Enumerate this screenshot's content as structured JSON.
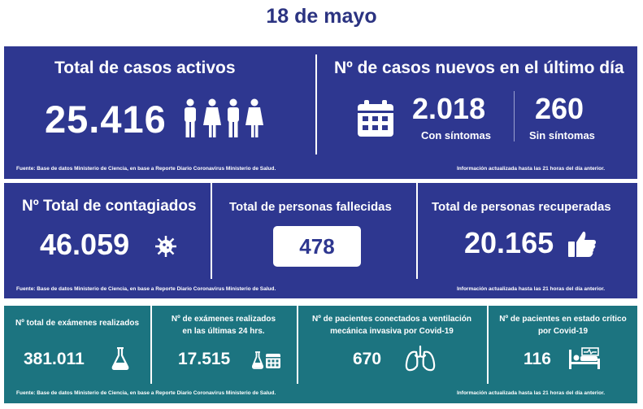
{
  "date": "18 de mayo",
  "top": {
    "activos": {
      "title": "Total de casos activos",
      "value": "25.416",
      "icon": "people-icon"
    },
    "nuevos": {
      "title": "Nº de casos nuevos en el último día",
      "icon": "calendar-icon",
      "con_value": "2.018",
      "con_label": "Con síntomas",
      "sin_value": "260",
      "sin_label": "Sin síntomas"
    },
    "footer_left": "Fuente: Base de datos Ministerio de Ciencia, en base a Reporte Diario Coronavirus Ministerio de Salud.",
    "footer_right": "Información actualizada hasta las 21 horas  del día anterior."
  },
  "middle": {
    "contagiados": {
      "title": "Nº Total de contagiados",
      "value": "46.059",
      "icon": "virus-icon"
    },
    "fallecidas": {
      "title": "Total de personas fallecidas",
      "value": "478"
    },
    "recuperadas": {
      "title": "Total de personas recuperadas",
      "value": "20.165",
      "icon": "thumbs-up-icon"
    },
    "footer_left": "Fuente: Base de datos Ministerio de Ciencia, en base a Reporte Diario Coronavirus Ministerio de Salud.",
    "footer_right": "Información actualizada hasta las 21 horas  del día anterior."
  },
  "bottom": {
    "examenes": {
      "title": "Nº total de exámenes realizados",
      "value": "381.011",
      "icon": "flask-icon"
    },
    "examenes24": {
      "title_line1": "Nº de exámenes realizados",
      "title_line2": "en las últimas 24 hrs.",
      "value": "17.515",
      "icon": "flask-calendar-icon"
    },
    "ventilacion": {
      "title_line1": "Nº de pacientes conectados a ventilación",
      "title_line2": "mecánica invasiva por Covid-19",
      "value": "670",
      "icon": "lungs-icon"
    },
    "critico": {
      "title_line1": "Nº de pacientes en estado crítico",
      "title_line2": "por Covid-19",
      "value": "116",
      "icon": "hospital-bed-icon"
    },
    "footer_left": "Fuente: Base de datos Ministerio de Ciencia, en base a Reporte Diario Coronavirus Ministerio de Salud.",
    "footer_right": "Información actualizada hasta las 21 horas  del día anterior."
  },
  "colors": {
    "navy": "#2e3790",
    "teal": "#1c7480",
    "title": "#2b3381"
  }
}
